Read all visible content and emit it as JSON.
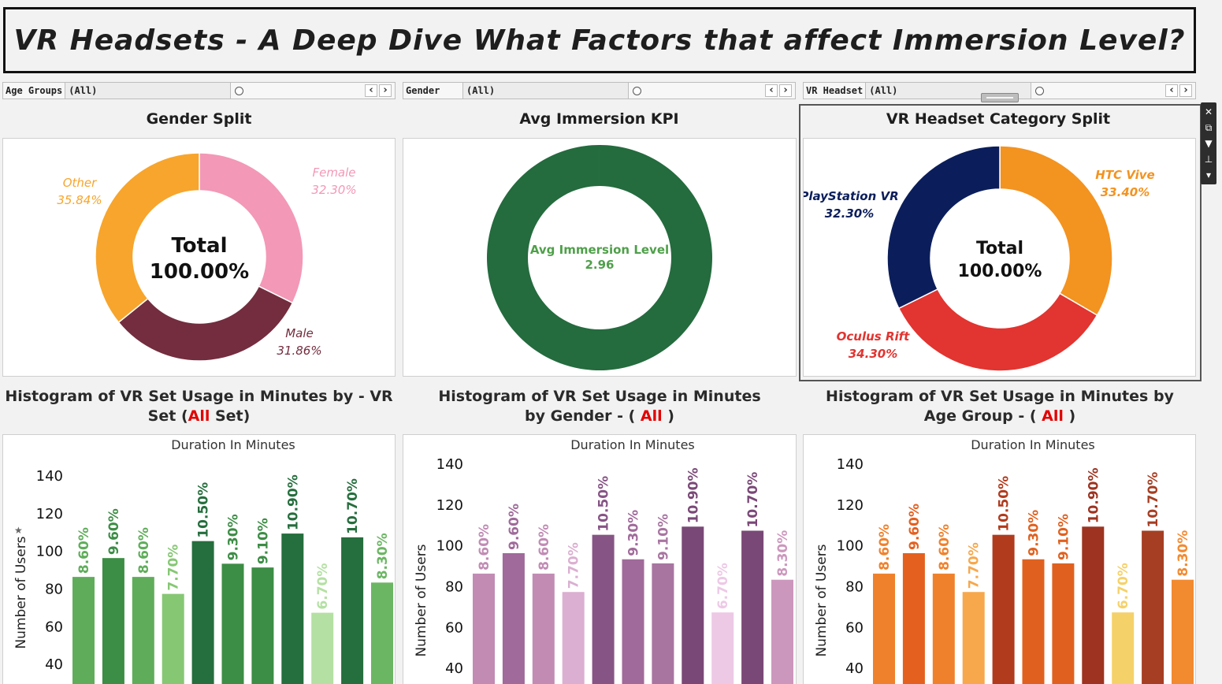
{
  "title": "VR Headsets - A Deep Dive What Factors that affect Immersion Level?",
  "filters": [
    {
      "label": "Age Groups",
      "value": "(All)"
    },
    {
      "label": "Gender",
      "value": "(All)"
    },
    {
      "label": "VR Headset",
      "value": "(All)"
    }
  ],
  "panels": {
    "gender_title": "Gender Split",
    "kpi_title": "Avg Immersion KPI",
    "headset_title": "VR Headset Category Split"
  },
  "histograms": {
    "vr_title_pre": "Histogram of VR Set Usage in Minutes by - VR Set (",
    "vr_title_red": "All",
    "vr_title_post": " Set)",
    "gender_title_pre": "Histogram of VR Set Usage in Minutes by Gender - ( ",
    "gender_title_red": "All",
    "gender_title_post": " )",
    "age_title_pre": "Histogram of VR Set Usage in Minutes by Age Group - ( ",
    "age_title_red": "All",
    "age_title_post": " )"
  },
  "toolbar_icons": [
    "close-icon",
    "popout-icon",
    "filter-icon",
    "pin-icon",
    "dropdown-icon"
  ],
  "chart_data": [
    {
      "type": "pie",
      "variant": "donut",
      "categories": [
        "Female",
        "Male",
        "Other"
      ],
      "values": [
        32.3,
        31.86,
        35.84
      ],
      "labels": [
        "32.30%",
        "31.86%",
        "35.84%"
      ],
      "colors": [
        "#f398b6",
        "#732d3e",
        "#f7a52c"
      ],
      "center_label": "Total",
      "center_value": "100.00%"
    },
    {
      "type": "pie",
      "variant": "donut",
      "categories": [
        "Avg Immersion Level"
      ],
      "values": [
        2.96
      ],
      "colors": [
        "#246b3e"
      ],
      "center_label": "Avg Immersion Level",
      "center_value": "2.96"
    },
    {
      "type": "pie",
      "variant": "donut",
      "categories": [
        "HTC Vive",
        "Oculus Rift",
        "PlayStation VR"
      ],
      "values": [
        33.4,
        34.3,
        32.3
      ],
      "labels": [
        "33.40%",
        "34.30%",
        "32.30%"
      ],
      "colors": [
        "#f39320",
        "#e23430",
        "#0b1e5b"
      ],
      "center_label": "Total",
      "center_value": "100.00%"
    },
    {
      "type": "bar",
      "title": "Duration In Minutes",
      "ylabel": "Number of Users",
      "ylim": [
        20,
        150
      ],
      "yticks": [
        40,
        60,
        80,
        100,
        120,
        140
      ],
      "values": [
        86,
        96,
        86,
        77,
        105,
        93,
        91,
        109,
        67,
        107,
        83
      ],
      "labels": [
        "8.60%",
        "9.60%",
        "8.60%",
        "7.70%",
        "10.50%",
        "9.30%",
        "9.10%",
        "10.90%",
        "6.70%",
        "10.70%",
        "8.30%"
      ],
      "colors": [
        "#5fad5a",
        "#3c8d45",
        "#5fad5a",
        "#86c774",
        "#256e3d",
        "#3c8d45",
        "#3c8d45",
        "#256e3d",
        "#b4e0a3",
        "#256e3d",
        "#6bb663"
      ]
    },
    {
      "type": "bar",
      "title": "Duration In Minutes",
      "ylabel": "Number of Users",
      "ylim": [
        20,
        150
      ],
      "yticks": [
        40,
        60,
        80,
        100,
        120,
        140
      ],
      "values": [
        86,
        96,
        86,
        77,
        105,
        93,
        91,
        109,
        67,
        107,
        83
      ],
      "labels": [
        "8.60%",
        "9.60%",
        "8.60%",
        "7.70%",
        "10.50%",
        "9.30%",
        "9.10%",
        "10.90%",
        "6.70%",
        "10.70%",
        "8.30%"
      ],
      "colors": [
        "#c18bb4",
        "#a06a9a",
        "#c18bb4",
        "#dbafd1",
        "#875486",
        "#a06a9a",
        "#a875a1",
        "#7a4877",
        "#edc9e6",
        "#7a4877",
        "#cc97bd"
      ]
    },
    {
      "type": "bar",
      "title": "Duration In Minutes",
      "ylabel": "Number of Users",
      "ylim": [
        20,
        150
      ],
      "yticks": [
        40,
        60,
        80,
        100,
        120,
        140
      ],
      "values": [
        86,
        96,
        86,
        77,
        105,
        93,
        91,
        109,
        67,
        107,
        83
      ],
      "labels": [
        "8.60%",
        "9.60%",
        "8.60%",
        "7.70%",
        "10.50%",
        "9.30%",
        "9.10%",
        "10.90%",
        "6.70%",
        "10.70%",
        "8.30%"
      ],
      "colors": [
        "#f0812c",
        "#e4601f",
        "#f0812c",
        "#f7a74c",
        "#b13b1d",
        "#e0611f",
        "#e0611f",
        "#9d3320",
        "#f5d169",
        "#a63e23",
        "#f28a30"
      ]
    }
  ]
}
